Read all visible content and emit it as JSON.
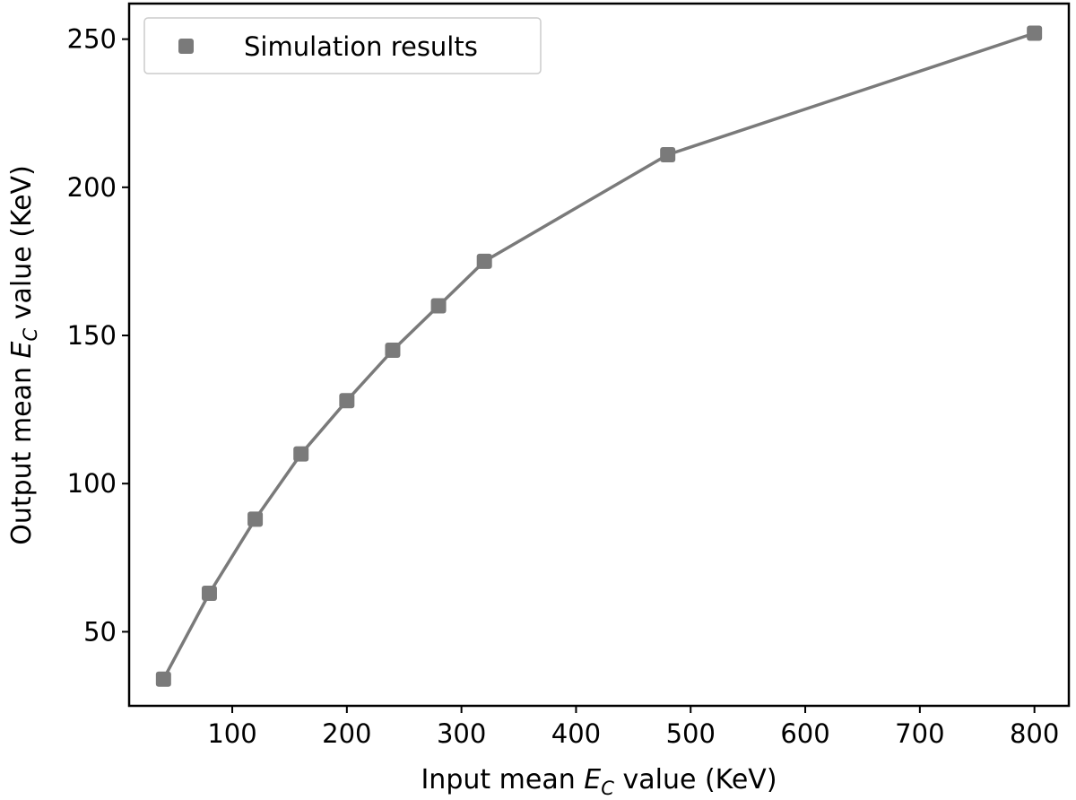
{
  "chart_data": {
    "type": "line",
    "xlabel": {
      "prefix": "Input mean ",
      "symbol": "E",
      "subscript": "C",
      "suffix": " value (KeV)"
    },
    "ylabel": {
      "prefix": "Output mean ",
      "symbol": "E",
      "subscript": "C",
      "suffix": " value (KeV)"
    },
    "xlim": [
      10,
      830
    ],
    "ylim": [
      25,
      262
    ],
    "xticks": [
      100,
      200,
      300,
      400,
      500,
      600,
      700,
      800
    ],
    "yticks": [
      50,
      100,
      150,
      200,
      250
    ],
    "grid": false,
    "legend_position": "top-left",
    "series": [
      {
        "name": "Simulation results",
        "color": "#7a7a7a",
        "marker": "square",
        "x": [
          40,
          80,
          120,
          160,
          200,
          240,
          280,
          320,
          480,
          800
        ],
        "y": [
          34,
          63,
          88,
          110,
          128,
          145,
          160,
          175,
          211,
          252
        ]
      }
    ]
  }
}
